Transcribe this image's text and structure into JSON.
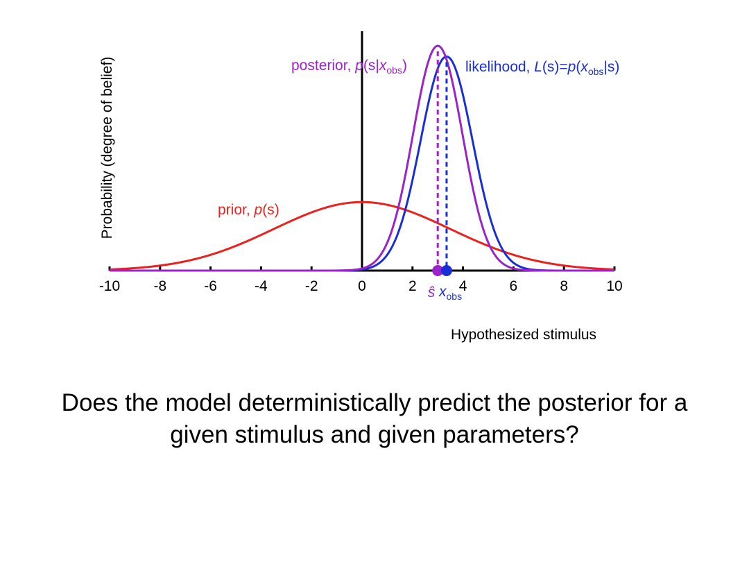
{
  "chart_data": {
    "type": "line",
    "title": "",
    "xlabel": "Hypothesized stimulus",
    "ylabel": "Probability (degree of belief)",
    "xlim": [
      -10,
      10
    ],
    "ylim": [
      0,
      1.05
    ],
    "xticks": [
      -10,
      -8,
      -6,
      -4,
      -2,
      0,
      2,
      4,
      6,
      8,
      10
    ],
    "series": [
      {
        "name": "prior",
        "label_text": "prior, ",
        "label_func": "p",
        "label_arg": "(s)",
        "color": "#e8231e",
        "mean": 0,
        "sd": 3.5,
        "peak": 0.32
      },
      {
        "name": "likelihood",
        "label_text": "likelihood, ",
        "label_L": "L",
        "label_s1": "(s)=",
        "label_p": "p",
        "label_open": "(",
        "label_x": "x",
        "label_sub": "obs",
        "label_close": "|s)",
        "color": "#1a2ed6",
        "mean": 3.35,
        "sd": 1.03,
        "peak": 1.0
      },
      {
        "name": "posterior",
        "label_text": "posterior, ",
        "label_p": "p",
        "label_open": "(s|",
        "label_x": "x",
        "label_sub": "obs",
        "label_close": ")",
        "color": "#9a24c9",
        "mean": 3.0,
        "sd": 0.98,
        "peak": 1.05
      }
    ],
    "markers": [
      {
        "name": "s-hat",
        "x": 3.0,
        "color": "#9a24c9",
        "label": "ŝ"
      },
      {
        "name": "x-obs",
        "x": 3.35,
        "color": "#1a2ed6",
        "label": "x",
        "sub": "obs"
      }
    ]
  },
  "caption": {
    "line1": "Does the model deterministically predict the posterior for a",
    "line2": "given stimulus and given parameters?"
  }
}
